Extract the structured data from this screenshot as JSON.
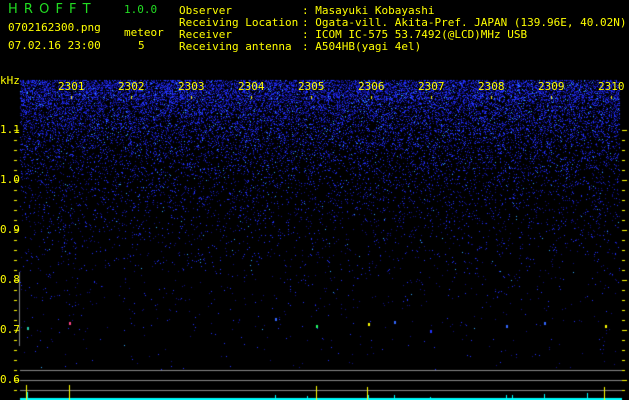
{
  "app": {
    "logo": "H R O F F T",
    "version": "1.0.0"
  },
  "file": {
    "name": "0702162300.png",
    "datetime": "07.02.16 23:00"
  },
  "meteor": {
    "label": "meteor",
    "count": "5"
  },
  "info": [
    {
      "label": "Observer",
      "value": ": Masayuki Kobayashi"
    },
    {
      "label": "Receiving Location",
      "value": ": Ogata-vill. Akita-Pref. JAPAN (139.96E, 40.02N)"
    },
    {
      "label": "Receiver",
      "value": ": ICOM IC-575 53.7492(@LCD)MHz USB"
    },
    {
      "label": "Receiving antenna",
      "value": ": A504HB(yagi 4el)"
    }
  ],
  "axis": {
    "unit": "kHz",
    "freq_ticks": [
      "1.1",
      "1.0",
      "0.9",
      "0.8",
      "0.7",
      "0.6"
    ],
    "time_ticks": [
      "2301",
      "2302",
      "2303",
      "2304",
      "2305",
      "2306",
      "2307",
      "2308",
      "2309",
      "2310"
    ]
  },
  "colors": {
    "text": "#ffff00",
    "logo": "#22dd22",
    "noise": "#2233ff",
    "bars": "#00ffff",
    "grid": "#888888"
  }
}
